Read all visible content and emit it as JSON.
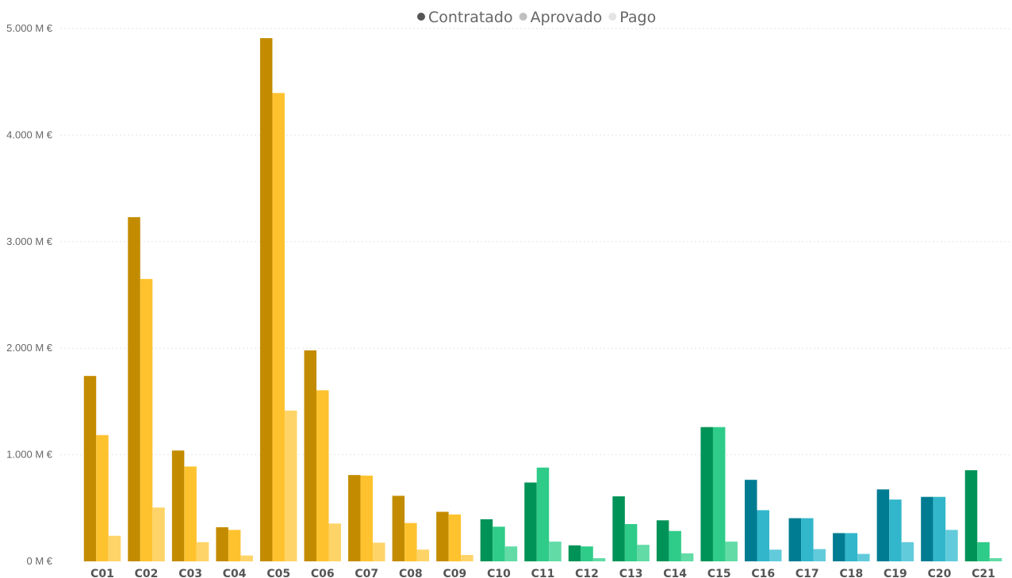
{
  "chart_data": {
    "type": "bar",
    "title": "",
    "xlabel": "",
    "ylabel": "",
    "ylim": [
      0,
      5000
    ],
    "y_ticks": [
      0,
      1000,
      2000,
      3000,
      4000,
      5000
    ],
    "y_tick_labels": [
      "0 M €",
      "1.000 M €",
      "2.000 M €",
      "3.000 M €",
      "4.000 M €",
      "5.000 M €"
    ],
    "grid": true,
    "legend_position": "top-center",
    "categories": [
      "C01",
      "C02",
      "C03",
      "C04",
      "C05",
      "C06",
      "C07",
      "C08",
      "C09",
      "C10",
      "C11",
      "C12",
      "C13",
      "C14",
      "C15",
      "C16",
      "C17",
      "C18",
      "C19",
      "C20",
      "C21"
    ],
    "series": [
      {
        "name": "Contratado",
        "values": [
          1740,
          3230,
          1040,
          320,
          4910,
          1980,
          810,
          615,
          465,
          395,
          740,
          150,
          610,
          385,
          1260,
          765,
          405,
          265,
          675,
          605,
          855
        ]
      },
      {
        "name": "Aprovado",
        "values": [
          1185,
          2650,
          890,
          295,
          4395,
          1605,
          805,
          360,
          440,
          325,
          880,
          140,
          350,
          285,
          1260,
          480,
          405,
          265,
          580,
          605,
          180
        ]
      },
      {
        "name": "Pago",
        "values": [
          240,
          505,
          180,
          55,
          1415,
          355,
          175,
          110,
          60,
          140,
          185,
          30,
          155,
          75,
          185,
          110,
          115,
          70,
          180,
          295,
          30
        ]
      }
    ],
    "legend_colors": [
      "#555555",
      "#c0c0c0",
      "#e4e4e4"
    ],
    "category_groups": [
      {
        "categories": [
          "C01",
          "C02",
          "C03",
          "C04",
          "C05",
          "C06",
          "C07",
          "C08",
          "C09"
        ],
        "colors": [
          "#c38c00",
          "#fec22f",
          "#fed468"
        ]
      },
      {
        "categories": [
          "C10",
          "C11",
          "C12",
          "C13",
          "C14",
          "C15",
          "C21"
        ],
        "colors": [
          "#009358",
          "#2fcb89",
          "#62dba7"
        ]
      },
      {
        "categories": [
          "C16",
          "C17",
          "C18",
          "C19",
          "C20"
        ],
        "colors": [
          "#007c92",
          "#32b6cb",
          "#62cbdb"
        ]
      }
    ],
    "grid_color": "#e6e6e6"
  }
}
